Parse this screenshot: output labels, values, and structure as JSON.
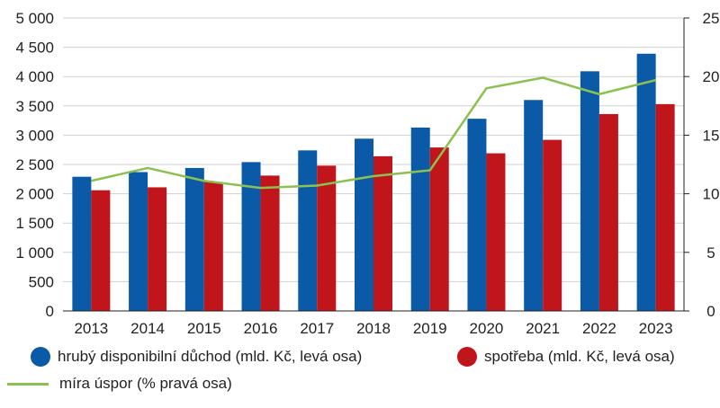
{
  "chart_data": {
    "type": "bar",
    "categories": [
      "2013",
      "2014",
      "2015",
      "2016",
      "2017",
      "2018",
      "2019",
      "2020",
      "2021",
      "2022",
      "2023"
    ],
    "series": [
      {
        "name": "hrubý disponibilní důchod (mld. Kč, levá osa)",
        "type": "bar",
        "axis": "left",
        "color": "#0a5aa8",
        "values": [
          2290,
          2370,
          2440,
          2540,
          2740,
          2940,
          3130,
          3280,
          3600,
          4090,
          4390
        ]
      },
      {
        "name": "spotřeba (mld. Kč, levá osa)",
        "type": "bar",
        "axis": "left",
        "color": "#c0151b",
        "values": [
          2060,
          2110,
          2200,
          2310,
          2480,
          2640,
          2790,
          2690,
          2920,
          3360,
          3530
        ]
      },
      {
        "name": "míra úspor (% pravá osa)",
        "type": "line",
        "axis": "right",
        "color": "#8cc152",
        "values": [
          11.1,
          12.2,
          11.1,
          10.5,
          10.7,
          11.5,
          12.0,
          19.0,
          19.9,
          18.5,
          19.7
        ]
      }
    ],
    "left_axis": {
      "ylim": [
        0,
        5000
      ],
      "ticks": [
        0,
        500,
        1000,
        1500,
        2000,
        2500,
        3000,
        3500,
        4000,
        4500,
        5000
      ],
      "tick_labels": [
        "0",
        "500",
        "1 000",
        "1 500",
        "2 000",
        "2 500",
        "3 000",
        "3 500",
        "4 000",
        "4 500",
        "5 000"
      ]
    },
    "right_axis": {
      "ylim": [
        0,
        25
      ],
      "ticks": [
        0,
        5,
        10,
        15,
        20,
        25
      ],
      "tick_labels": [
        "0",
        "5",
        "10",
        "15",
        "20",
        "25"
      ]
    },
    "grid": true,
    "legend_position": "bottom"
  },
  "legend": {
    "item1": "hrubý disponibilní důchod (mld. Kč, levá osa)",
    "item2": "spotřeba (mld. Kč, levá osa)",
    "item3": "míra úspor (% pravá osa)"
  }
}
